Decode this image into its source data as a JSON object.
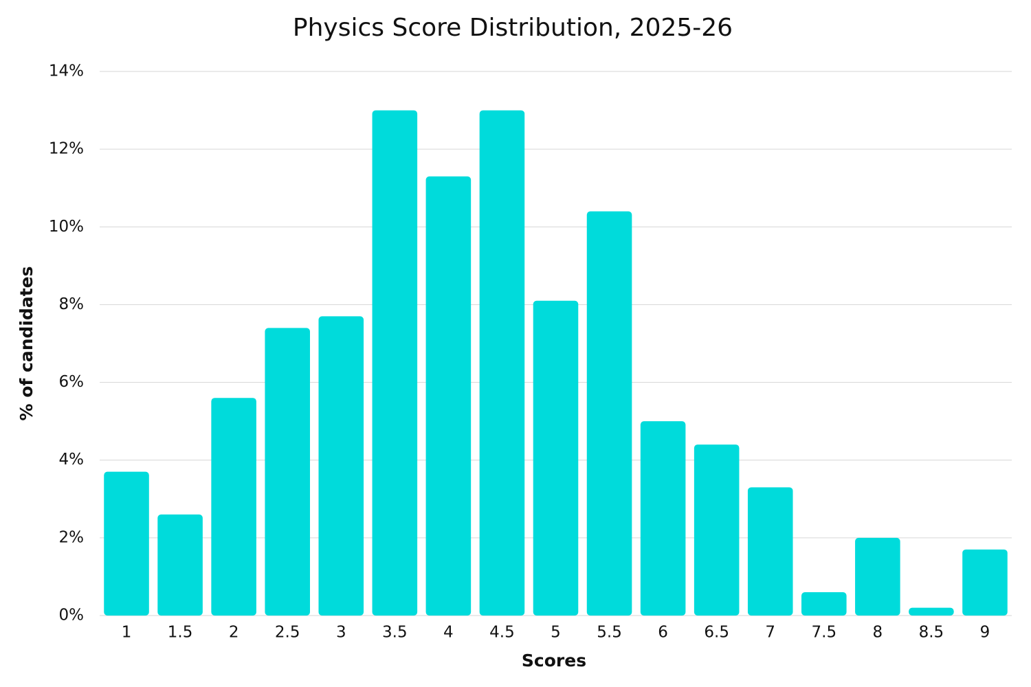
{
  "chart_data": {
    "type": "bar",
    "title": "Physics Score Distribution, 2025-26",
    "x_label": "Scores",
    "y_label": "% of candidates",
    "categories": [
      "1",
      "1.5",
      "2",
      "2.5",
      "3",
      "3.5",
      "4",
      "4.5",
      "5",
      "5.5",
      "6",
      "6.5",
      "7",
      "7.5",
      "8",
      "8.5",
      "9"
    ],
    "values": [
      3.7,
      2.6,
      5.6,
      7.4,
      7.7,
      13,
      11.3,
      13,
      8.1,
      10.4,
      5,
      4.4,
      3.3,
      0.6,
      2,
      0.2,
      1.7
    ],
    "color": "#00dbdb",
    "ylim": [
      0,
      14
    ],
    "yticks": [
      {
        "value": 0,
        "label": "0%"
      },
      {
        "value": 2,
        "label": "2%"
      },
      {
        "value": 4,
        "label": "4%"
      },
      {
        "value": 6,
        "label": "6%"
      },
      {
        "value": 8,
        "label": "8%"
      },
      {
        "value": 10,
        "label": "10%"
      },
      {
        "value": 12,
        "label": "12%"
      },
      {
        "value": 14,
        "label": "14%"
      }
    ],
    "grid": true
  }
}
